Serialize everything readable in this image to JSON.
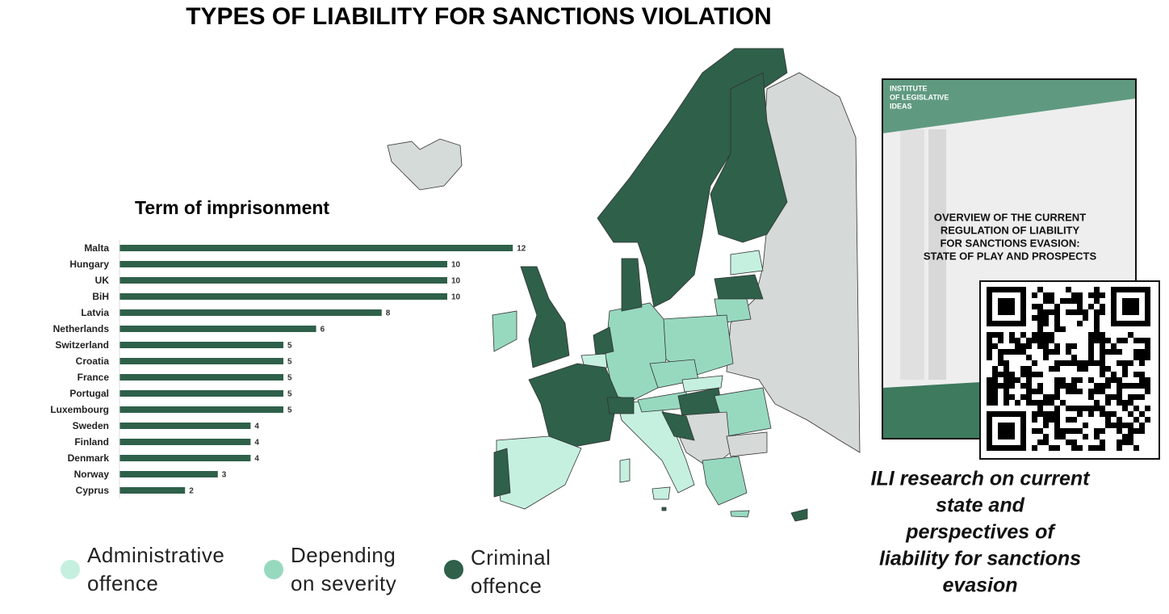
{
  "title": "TYPES OF LIABILITY FOR SANCTIONS VIOLATION",
  "chart_data": {
    "type": "bar",
    "orientation": "horizontal",
    "title": "Term of imprisonment",
    "categories": [
      "Malta",
      "Hungary",
      "UK",
      "BiH",
      "Latvia",
      "Netherlands",
      "Switzerland",
      "Croatia",
      "France",
      "Portugal",
      "Luxembourg",
      "Sweden",
      "Finland",
      "Denmark",
      "Norway",
      "Cyprus"
    ],
    "values": [
      12,
      10,
      10,
      10,
      8,
      6,
      5,
      5,
      5,
      5,
      5,
      4,
      4,
      4,
      3,
      2
    ],
    "color": "#2e604a"
  },
  "legend": [
    {
      "lines": [
        "Administrative",
        "offence"
      ],
      "color": "#c5f0df"
    },
    {
      "lines": [
        "Depending",
        "on  severity"
      ],
      "color": "#97d9bf"
    },
    {
      "lines": [
        "Criminal",
        "offence"
      ],
      "color": "#2e604a"
    }
  ],
  "cover": {
    "publisher": [
      "INSTITUTE",
      "OF LEGISLATIVE",
      "IDEAS"
    ],
    "title": [
      "OVERVIEW OF THE CURRENT",
      "REGULATION OF LIABILITY",
      "FOR SANCTIONS EVASION:",
      "STATE OF PLAY AND PROSPECTS"
    ]
  },
  "caption": [
    "ILI research on current",
    "state and",
    "perspectives of",
    "liability for sanctions",
    "evasion"
  ]
}
